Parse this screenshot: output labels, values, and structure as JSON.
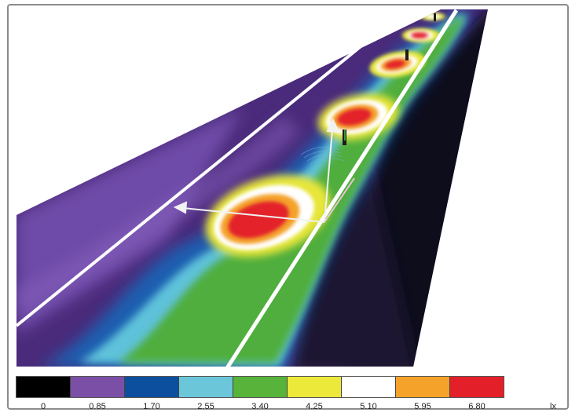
{
  "legend": {
    "unit": "lx",
    "colors": [
      "#000000",
      "#7b4fa6",
      "#0c4f9e",
      "#6cc6d9",
      "#57b33a",
      "#ece93a",
      "#ffffff",
      "#f4a22a",
      "#e3202a"
    ],
    "ticks": [
      "0",
      "0.85",
      "1.70",
      "2.55",
      "3.40",
      "4.25",
      "5.10",
      "5.95",
      "6.80"
    ]
  },
  "road": {
    "lane_line_color": "#ffffff",
    "luminaires": 4
  }
}
